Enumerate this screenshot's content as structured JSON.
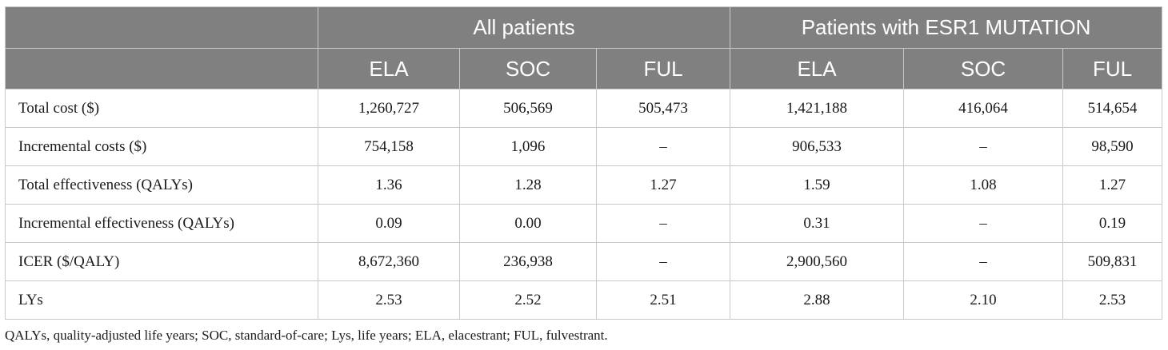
{
  "table": {
    "group_headers": [
      "",
      "All patients",
      "Patients with ESR1 MUTATION"
    ],
    "sub_headers": [
      "ELA",
      "SOC",
      "FUL",
      "ELA",
      "SOC",
      "FUL"
    ],
    "rows": [
      {
        "label": "Total cost ($)",
        "values": [
          "1,260,727",
          "506,569",
          "505,473",
          "1,421,188",
          "416,064",
          "514,654"
        ]
      },
      {
        "label": "Incremental costs ($)",
        "values": [
          "754,158",
          "1,096",
          "–",
          "906,533",
          "–",
          "98,590"
        ]
      },
      {
        "label": "Total effectiveness (QALYs)",
        "values": [
          "1.36",
          "1.28",
          "1.27",
          "1.59",
          "1.08",
          "1.27"
        ]
      },
      {
        "label": "Incremental effectiveness (QALYs)",
        "values": [
          "0.09",
          "0.00",
          "–",
          "0.31",
          "–",
          "0.19"
        ]
      },
      {
        "label": "ICER ($/QALY)",
        "values": [
          "8,672,360",
          "236,938",
          "–",
          "2,900,560",
          "–",
          "509,831"
        ]
      },
      {
        "label": "LYs",
        "values": [
          "2.53",
          "2.52",
          "2.51",
          "2.88",
          "2.10",
          "2.53"
        ]
      }
    ]
  },
  "footnote": "QALYs, quality-adjusted life years; SOC, standard-of-care; Lys, life years; ELA, elacestrant; FUL, fulvestrant."
}
